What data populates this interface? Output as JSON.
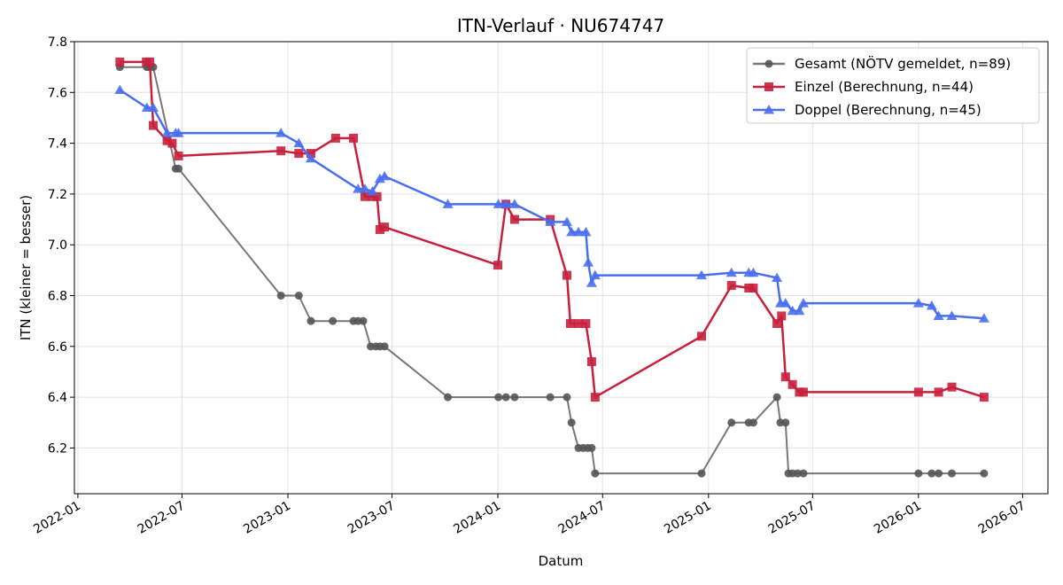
{
  "chart_data": {
    "type": "line",
    "title": "ITN-Verlauf · NU674747",
    "xlabel": "Datum",
    "ylabel": "ITN  (kleiner = besser)",
    "ylim": [
      6.02,
      7.8
    ],
    "xlim": [
      "2021-12-26",
      "2026-08-14"
    ],
    "yticks": [
      "6.2",
      "6.4",
      "6.6",
      "6.8",
      "7.0",
      "7.2",
      "7.4",
      "7.6",
      "7.8"
    ],
    "xticks": [
      "2022-01",
      "2022-07",
      "2023-01",
      "2023-07",
      "2024-01",
      "2024-07",
      "2025-01",
      "2025-07",
      "2026-01",
      "2026-07"
    ],
    "grid": true,
    "legend_position": "top-right",
    "series": [
      {
        "name": "Gesamt (NÖTV gemeldet, n=89)",
        "color": "#555555",
        "marker": "circle",
        "points": [
          [
            "2022-03-15",
            7.7
          ],
          [
            "2022-05-01",
            7.7
          ],
          [
            "2022-05-05",
            7.7
          ],
          [
            "2022-05-12",
            7.7
          ],
          [
            "2022-06-20",
            7.3
          ],
          [
            "2022-06-25",
            7.3
          ],
          [
            "2022-12-20",
            6.8
          ],
          [
            "2023-01-20",
            6.8
          ],
          [
            "2023-02-10",
            6.7
          ],
          [
            "2023-03-20",
            6.7
          ],
          [
            "2023-04-25",
            6.7
          ],
          [
            "2023-05-03",
            6.7
          ],
          [
            "2023-05-12",
            6.7
          ],
          [
            "2023-05-25",
            6.6
          ],
          [
            "2023-06-03",
            6.6
          ],
          [
            "2023-06-10",
            6.6
          ],
          [
            "2023-06-18",
            6.6
          ],
          [
            "2023-10-06",
            6.4
          ],
          [
            "2024-01-02",
            6.4
          ],
          [
            "2024-01-15",
            6.4
          ],
          [
            "2024-01-30",
            6.4
          ],
          [
            "2024-04-01",
            6.4
          ],
          [
            "2024-04-30",
            6.4
          ],
          [
            "2024-05-08",
            6.3
          ],
          [
            "2024-05-20",
            6.2
          ],
          [
            "2024-05-28",
            6.2
          ],
          [
            "2024-06-05",
            6.2
          ],
          [
            "2024-06-12",
            6.2
          ],
          [
            "2024-06-18",
            6.1
          ],
          [
            "2024-12-20",
            6.1
          ],
          [
            "2025-02-10",
            6.3
          ],
          [
            "2025-03-12",
            6.3
          ],
          [
            "2025-03-20",
            6.3
          ],
          [
            "2025-04-30",
            6.4
          ],
          [
            "2025-05-06",
            6.3
          ],
          [
            "2025-05-15",
            6.3
          ],
          [
            "2025-05-20",
            6.1
          ],
          [
            "2025-05-27",
            6.1
          ],
          [
            "2025-06-05",
            6.1
          ],
          [
            "2025-06-15",
            6.1
          ],
          [
            "2026-01-01",
            6.1
          ],
          [
            "2026-01-24",
            6.1
          ],
          [
            "2026-02-05",
            6.1
          ],
          [
            "2026-02-28",
            6.1
          ],
          [
            "2026-04-25",
            6.1
          ]
        ]
      },
      {
        "name": "Einzel (Berechnung, n=44)",
        "color": "#c8203c",
        "marker": "square",
        "points": [
          [
            "2022-03-15",
            7.72
          ],
          [
            "2022-04-30",
            7.72
          ],
          [
            "2022-05-06",
            7.72
          ],
          [
            "2022-05-12",
            7.47
          ],
          [
            "2022-06-05",
            7.41
          ],
          [
            "2022-06-14",
            7.4
          ],
          [
            "2022-06-25",
            7.35
          ],
          [
            "2022-12-20",
            7.37
          ],
          [
            "2023-01-20",
            7.36
          ],
          [
            "2023-02-10",
            7.36
          ],
          [
            "2023-03-25",
            7.42
          ],
          [
            "2023-04-25",
            7.42
          ],
          [
            "2023-05-15",
            7.19
          ],
          [
            "2023-05-28",
            7.19
          ],
          [
            "2023-06-05",
            7.19
          ],
          [
            "2023-06-10",
            7.06
          ],
          [
            "2023-06-18",
            7.07
          ],
          [
            "2024-01-01",
            6.92
          ],
          [
            "2024-01-15",
            7.16
          ],
          [
            "2024-01-30",
            7.1
          ],
          [
            "2024-04-01",
            7.1
          ],
          [
            "2024-04-30",
            6.88
          ],
          [
            "2024-05-06",
            6.69
          ],
          [
            "2024-05-20",
            6.69
          ],
          [
            "2024-06-02",
            6.69
          ],
          [
            "2024-06-12",
            6.54
          ],
          [
            "2024-06-18",
            6.4
          ],
          [
            "2024-12-20",
            6.64
          ],
          [
            "2025-02-10",
            6.84
          ],
          [
            "2025-03-12",
            6.83
          ],
          [
            "2025-03-20",
            6.83
          ],
          [
            "2025-04-30",
            6.69
          ],
          [
            "2025-05-08",
            6.72
          ],
          [
            "2025-05-15",
            6.48
          ],
          [
            "2025-05-27",
            6.45
          ],
          [
            "2025-06-08",
            6.42
          ],
          [
            "2025-06-15",
            6.42
          ],
          [
            "2026-01-01",
            6.42
          ],
          [
            "2026-02-05",
            6.42
          ],
          [
            "2026-02-28",
            6.44
          ],
          [
            "2026-04-25",
            6.4
          ]
        ]
      },
      {
        "name": "Doppel (Berechnung, n=45)",
        "color": "#4a6ef0",
        "marker": "triangle",
        "points": [
          [
            "2022-03-15",
            7.61
          ],
          [
            "2022-05-01",
            7.54
          ],
          [
            "2022-05-12",
            7.54
          ],
          [
            "2022-06-05",
            7.44
          ],
          [
            "2022-06-20",
            7.44
          ],
          [
            "2022-06-25",
            7.44
          ],
          [
            "2022-12-20",
            7.44
          ],
          [
            "2023-01-20",
            7.4
          ],
          [
            "2023-02-10",
            7.34
          ],
          [
            "2023-05-03",
            7.22
          ],
          [
            "2023-05-15",
            7.22
          ],
          [
            "2023-05-28",
            7.21
          ],
          [
            "2023-06-10",
            7.26
          ],
          [
            "2023-06-18",
            7.27
          ],
          [
            "2023-10-06",
            7.16
          ],
          [
            "2024-01-02",
            7.16
          ],
          [
            "2024-01-15",
            7.16
          ],
          [
            "2024-01-30",
            7.16
          ],
          [
            "2024-04-01",
            7.09
          ],
          [
            "2024-04-30",
            7.09
          ],
          [
            "2024-05-08",
            7.05
          ],
          [
            "2024-05-20",
            7.05
          ],
          [
            "2024-06-02",
            7.05
          ],
          [
            "2024-06-06",
            6.93
          ],
          [
            "2024-06-12",
            6.85
          ],
          [
            "2024-06-18",
            6.88
          ],
          [
            "2024-12-20",
            6.88
          ],
          [
            "2025-02-10",
            6.89
          ],
          [
            "2025-03-12",
            6.89
          ],
          [
            "2025-03-20",
            6.89
          ],
          [
            "2025-04-30",
            6.87
          ],
          [
            "2025-05-06",
            6.77
          ],
          [
            "2025-05-15",
            6.77
          ],
          [
            "2025-05-27",
            6.74
          ],
          [
            "2025-06-08",
            6.74
          ],
          [
            "2025-06-15",
            6.77
          ],
          [
            "2026-01-01",
            6.77
          ],
          [
            "2026-01-24",
            6.76
          ],
          [
            "2026-02-05",
            6.72
          ],
          [
            "2026-02-28",
            6.72
          ],
          [
            "2026-04-25",
            6.71
          ]
        ]
      }
    ]
  }
}
